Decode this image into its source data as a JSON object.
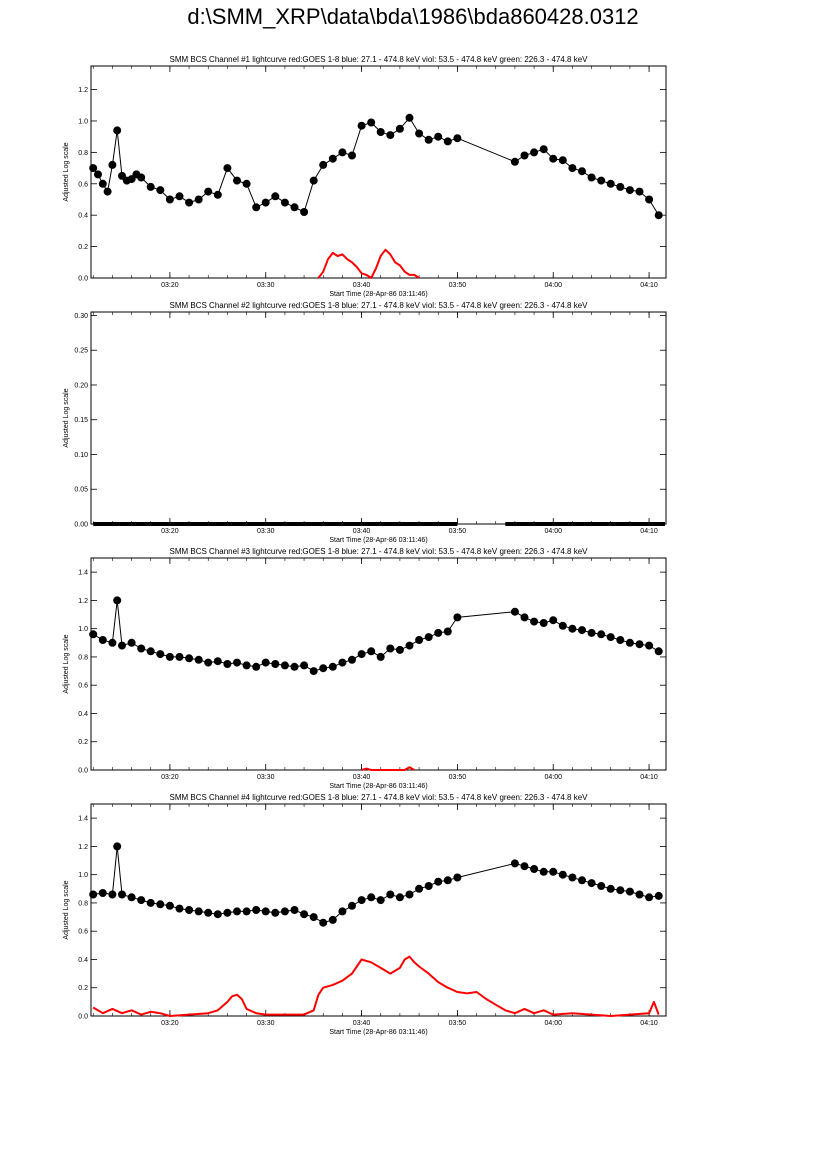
{
  "page": {
    "title": "d:\\SMM_XRP\\data\\bda\\1986\\bda860428.0312"
  },
  "colors": {
    "data": "#000000",
    "goes": "#ff0000",
    "axes": "#000000"
  },
  "chart_data": [
    {
      "type": "line",
      "title": "SMM BCS Channel #1 lightcurve  red:GOES 1-8  blue: 27.1 - 474.8 keV  viol: 53.5 - 474.8 keV  green: 226.3 - 474.8 keV",
      "xlabel": "Start Time (28-Apr-86 03:11:46)",
      "ylabel": "Adjusted Log scale",
      "xlim": [
        "03:11:46",
        "04:11:46"
      ],
      "ylim": [
        0,
        1.35
      ],
      "xticks": [
        "03:20",
        "03:30",
        "03:40",
        "03:50",
        "04:00",
        "04:10"
      ],
      "yticks": [
        "0.0",
        "0.2",
        "0.4",
        "0.6",
        "0.8",
        "1.0",
        "1.2"
      ],
      "grid": false,
      "series": [
        {
          "style": "line-markers",
          "color": "#000000",
          "x": [
            "03:12:00",
            "03:12:30",
            "03:13:00",
            "03:13:30",
            "03:14:00",
            "03:14:30",
            "03:15:00",
            "03:15:30",
            "03:16:00",
            "03:16:30",
            "03:17:00",
            "03:18:00",
            "03:19:00",
            "03:20:00",
            "03:21:00",
            "03:22:00",
            "03:23:00",
            "03:24:00",
            "03:25:00",
            "03:26:00",
            "03:27:00",
            "03:28:00",
            "03:29:00",
            "03:30:00",
            "03:31:00",
            "03:32:00",
            "03:33:00",
            "03:34:00",
            "03:35:00",
            "03:36:00",
            "03:37:00",
            "03:38:00",
            "03:39:00",
            "03:40:00",
            "03:41:00",
            "03:42:00",
            "03:43:00",
            "03:44:00",
            "03:45:00",
            "03:46:00",
            "03:47:00",
            "03:48:00",
            "03:49:00",
            "03:50:00",
            "03:56:00",
            "03:57:00",
            "03:58:00",
            "03:59:00",
            "04:00:00",
            "04:01:00",
            "04:02:00",
            "04:03:00",
            "04:04:00",
            "04:05:00",
            "04:06:00",
            "04:07:00",
            "04:08:00",
            "04:09:00",
            "04:10:00",
            "04:11:00"
          ],
          "values": [
            0.7,
            0.66,
            0.6,
            0.55,
            0.72,
            0.94,
            0.65,
            0.62,
            0.63,
            0.66,
            0.64,
            0.58,
            0.56,
            0.5,
            0.52,
            0.48,
            0.5,
            0.55,
            0.53,
            0.7,
            0.62,
            0.6,
            0.45,
            0.48,
            0.52,
            0.48,
            0.45,
            0.42,
            0.62,
            0.72,
            0.76,
            0.8,
            0.78,
            0.97,
            0.99,
            0.93,
            0.91,
            0.95,
            1.02,
            0.92,
            0.88,
            0.9,
            0.87,
            0.89,
            0.74,
            0.78,
            0.8,
            0.82,
            0.76,
            0.75,
            0.7,
            0.68,
            0.64,
            0.62,
            0.6,
            0.58,
            0.56,
            0.55,
            0.5,
            0.4
          ]
        },
        {
          "style": "line",
          "color": "#ff0000",
          "x": [
            "03:35:30",
            "03:36:00",
            "03:36:30",
            "03:37:00",
            "03:37:30",
            "03:38:00",
            "03:38:30",
            "03:39:00",
            "03:39:30",
            "03:40:00",
            "03:40:30",
            "03:41:00",
            "03:41:30",
            "03:42:00",
            "03:42:30",
            "03:43:00",
            "03:43:30",
            "03:44:00",
            "03:44:30",
            "03:45:00",
            "03:45:30",
            "03:46:00"
          ],
          "values": [
            0.0,
            0.04,
            0.12,
            0.16,
            0.14,
            0.15,
            0.12,
            0.1,
            0.07,
            0.03,
            0.02,
            0.0,
            0.06,
            0.14,
            0.18,
            0.15,
            0.1,
            0.08,
            0.04,
            0.02,
            0.02,
            0.0
          ]
        }
      ]
    },
    {
      "type": "line",
      "title": "SMM BCS Channel #2 lightcurve  red:GOES 1-8  blue: 27.1 - 474.8 keV  viol: 53.5 - 474.8 keV  green: 226.3 - 474.8 keV",
      "xlabel": "Start Time (28-Apr-86 03:11:46)",
      "ylabel": "Adjusted Log scale",
      "xlim": [
        "03:11:46",
        "04:11:46"
      ],
      "ylim": [
        0,
        0.305
      ],
      "xticks": [
        "03:20",
        "03:30",
        "03:40",
        "03:50",
        "04:00",
        "04:10"
      ],
      "yticks": [
        "0.00",
        "0.05",
        "0.10",
        "0.15",
        "0.20",
        "0.25",
        "0.30"
      ],
      "grid": false,
      "series": [
        {
          "style": "thick-line",
          "color": "#000000",
          "x": [
            "03:12:00",
            "03:50:00"
          ],
          "values": [
            0.0,
            0.0
          ]
        },
        {
          "style": "thick-line",
          "color": "#000000",
          "x": [
            "03:55:00",
            "04:11:40"
          ],
          "values": [
            0.0,
            0.0
          ]
        }
      ]
    },
    {
      "type": "line",
      "title": "SMM BCS Channel #3 lightcurve  red:GOES 1-8  blue: 27.1 - 474.8 keV  viol: 53.5 - 474.8 keV  green: 226.3 - 474.8 keV",
      "xlabel": "Start Time (28-Apr-86 03:11:46)",
      "ylabel": "Adjusted Log scale",
      "xlim": [
        "03:11:46",
        "04:11:46"
      ],
      "ylim": [
        0,
        1.5
      ],
      "xticks": [
        "03:20",
        "03:30",
        "03:40",
        "03:50",
        "04:00",
        "04:10"
      ],
      "yticks": [
        "0.0",
        "0.2",
        "0.4",
        "0.6",
        "0.8",
        "1.0",
        "1.2",
        "1.4"
      ],
      "grid": false,
      "series": [
        {
          "style": "line-markers",
          "color": "#000000",
          "x": [
            "03:12:00",
            "03:13:00",
            "03:14:00",
            "03:14:30",
            "03:15:00",
            "03:16:00",
            "03:17:00",
            "03:18:00",
            "03:19:00",
            "03:20:00",
            "03:21:00",
            "03:22:00",
            "03:23:00",
            "03:24:00",
            "03:25:00",
            "03:26:00",
            "03:27:00",
            "03:28:00",
            "03:29:00",
            "03:30:00",
            "03:31:00",
            "03:32:00",
            "03:33:00",
            "03:34:00",
            "03:35:00",
            "03:36:00",
            "03:37:00",
            "03:38:00",
            "03:39:00",
            "03:40:00",
            "03:41:00",
            "03:42:00",
            "03:43:00",
            "03:44:00",
            "03:45:00",
            "03:46:00",
            "03:47:00",
            "03:48:00",
            "03:49:00",
            "03:50:00",
            "03:56:00",
            "03:57:00",
            "03:58:00",
            "03:59:00",
            "04:00:00",
            "04:01:00",
            "04:02:00",
            "04:03:00",
            "04:04:00",
            "04:05:00",
            "04:06:00",
            "04:07:00",
            "04:08:00",
            "04:09:00",
            "04:10:00",
            "04:11:00"
          ],
          "values": [
            0.96,
            0.92,
            0.9,
            1.2,
            0.88,
            0.9,
            0.86,
            0.84,
            0.82,
            0.8,
            0.8,
            0.79,
            0.78,
            0.76,
            0.77,
            0.75,
            0.76,
            0.74,
            0.73,
            0.76,
            0.75,
            0.74,
            0.73,
            0.74,
            0.7,
            0.72,
            0.73,
            0.76,
            0.78,
            0.82,
            0.84,
            0.8,
            0.86,
            0.85,
            0.88,
            0.92,
            0.94,
            0.97,
            0.98,
            1.08,
            1.12,
            1.08,
            1.05,
            1.04,
            1.06,
            1.02,
            1.0,
            0.99,
            0.97,
            0.96,
            0.94,
            0.92,
            0.9,
            0.89,
            0.88,
            0.84
          ]
        },
        {
          "style": "line",
          "color": "#ff0000",
          "x": [
            "03:40:00",
            "03:40:30",
            "03:41:00",
            "03:44:30",
            "03:45:00",
            "03:45:30"
          ],
          "values": [
            0.0,
            0.01,
            0.0,
            0.0,
            0.02,
            0.0
          ]
        }
      ]
    },
    {
      "type": "line",
      "title": "SMM BCS Channel #4 lightcurve  red:GOES 1-8  blue: 27.1 - 474.8 keV  viol: 53.5 - 474.8 keV  green: 226.3 - 474.8 keV",
      "xlabel": "Start Time (28-Apr-86 03:11:46)",
      "ylabel": "Adjusted Log scale",
      "xlim": [
        "03:11:46",
        "04:11:46"
      ],
      "ylim": [
        0,
        1.5
      ],
      "xticks": [
        "03:20",
        "03:30",
        "03:40",
        "03:50",
        "04:00",
        "04:10"
      ],
      "yticks": [
        "0.0",
        "0.2",
        "0.4",
        "0.6",
        "0.8",
        "1.0",
        "1.2",
        "1.4"
      ],
      "grid": false,
      "series": [
        {
          "style": "line-markers",
          "color": "#000000",
          "x": [
            "03:12:00",
            "03:13:00",
            "03:14:00",
            "03:14:30",
            "03:15:00",
            "03:16:00",
            "03:17:00",
            "03:18:00",
            "03:19:00",
            "03:20:00",
            "03:21:00",
            "03:22:00",
            "03:23:00",
            "03:24:00",
            "03:25:00",
            "03:26:00",
            "03:27:00",
            "03:28:00",
            "03:29:00",
            "03:30:00",
            "03:31:00",
            "03:32:00",
            "03:33:00",
            "03:34:00",
            "03:35:00",
            "03:36:00",
            "03:37:00",
            "03:38:00",
            "03:39:00",
            "03:40:00",
            "03:41:00",
            "03:42:00",
            "03:43:00",
            "03:44:00",
            "03:45:00",
            "03:46:00",
            "03:47:00",
            "03:48:00",
            "03:49:00",
            "03:50:00",
            "03:56:00",
            "03:57:00",
            "03:58:00",
            "03:59:00",
            "04:00:00",
            "04:01:00",
            "04:02:00",
            "04:03:00",
            "04:04:00",
            "04:05:00",
            "04:06:00",
            "04:07:00",
            "04:08:00",
            "04:09:00",
            "04:10:00",
            "04:11:00"
          ],
          "values": [
            0.86,
            0.87,
            0.86,
            1.2,
            0.86,
            0.84,
            0.82,
            0.8,
            0.79,
            0.78,
            0.76,
            0.75,
            0.74,
            0.73,
            0.72,
            0.73,
            0.74,
            0.74,
            0.75,
            0.74,
            0.73,
            0.74,
            0.75,
            0.72,
            0.7,
            0.66,
            0.68,
            0.74,
            0.78,
            0.82,
            0.84,
            0.82,
            0.86,
            0.84,
            0.86,
            0.9,
            0.92,
            0.95,
            0.96,
            0.98,
            1.08,
            1.06,
            1.04,
            1.02,
            1.02,
            1.0,
            0.98,
            0.96,
            0.94,
            0.92,
            0.9,
            0.89,
            0.88,
            0.86,
            0.84,
            0.85
          ]
        },
        {
          "style": "line",
          "color": "#ff0000",
          "x": [
            "03:12:00",
            "03:13:00",
            "03:14:00",
            "03:15:00",
            "03:16:00",
            "03:17:00",
            "03:18:00",
            "03:19:00",
            "03:20:00",
            "03:22:00",
            "03:24:00",
            "03:25:00",
            "03:26:00",
            "03:26:30",
            "03:27:00",
            "03:27:30",
            "03:28:00",
            "03:29:00",
            "03:30:00",
            "03:32:00",
            "03:34:00",
            "03:35:00",
            "03:35:30",
            "03:36:00",
            "03:37:00",
            "03:38:00",
            "03:39:00",
            "03:40:00",
            "03:41:00",
            "03:42:00",
            "03:43:00",
            "03:44:00",
            "03:44:30",
            "03:45:00",
            "03:45:30",
            "03:46:00",
            "03:47:00",
            "03:48:00",
            "03:49:00",
            "03:50:00",
            "03:51:00",
            "03:52:00",
            "03:53:00",
            "03:54:00",
            "03:55:00",
            "03:56:00",
            "03:57:00",
            "03:58:00",
            "03:59:00",
            "04:00:00",
            "04:02:00",
            "04:04:00",
            "04:06:00",
            "04:08:00",
            "04:10:00",
            "04:10:30",
            "04:11:00"
          ],
          "values": [
            0.06,
            0.02,
            0.05,
            0.02,
            0.04,
            0.01,
            0.03,
            0.02,
            0.0,
            0.01,
            0.02,
            0.04,
            0.1,
            0.14,
            0.15,
            0.12,
            0.05,
            0.02,
            0.01,
            0.01,
            0.01,
            0.04,
            0.15,
            0.2,
            0.22,
            0.25,
            0.3,
            0.4,
            0.38,
            0.34,
            0.3,
            0.34,
            0.4,
            0.42,
            0.38,
            0.35,
            0.3,
            0.24,
            0.2,
            0.17,
            0.16,
            0.17,
            0.12,
            0.08,
            0.04,
            0.02,
            0.05,
            0.02,
            0.04,
            0.01,
            0.02,
            0.01,
            0.0,
            0.01,
            0.02,
            0.1,
            0.01
          ]
        }
      ]
    }
  ]
}
